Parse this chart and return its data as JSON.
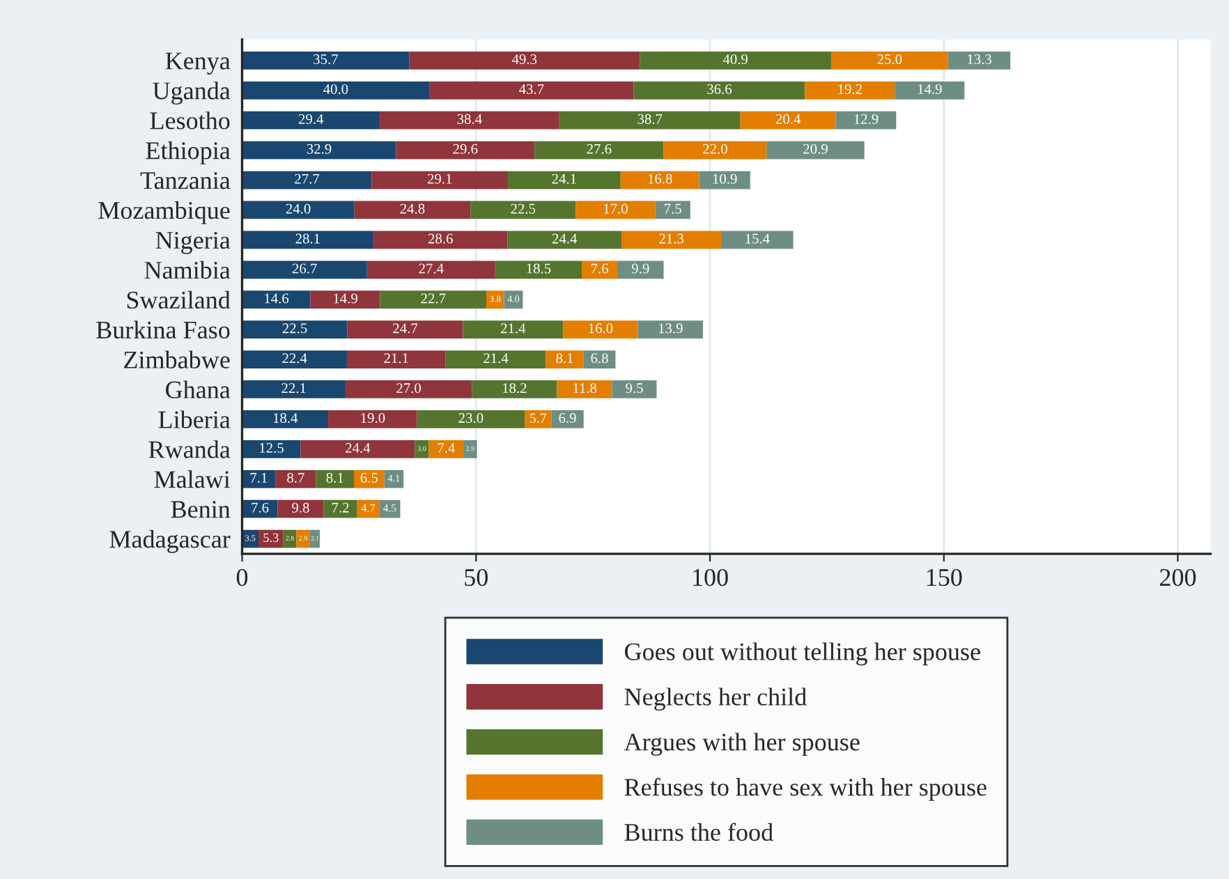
{
  "chart_data": {
    "type": "bar",
    "orientation": "horizontal",
    "stacked": true,
    "grid": "x",
    "legend": "bottom",
    "categories": [
      "Kenya",
      "Uganda",
      "Lesotho",
      "Ethiopia",
      "Tanzania",
      "Mozambique",
      "Nigeria",
      "Namibia",
      "Swaziland",
      "Burkina Faso",
      "Zimbabwe",
      "Ghana",
      "Liberia",
      "Rwanda",
      "Malawi",
      "Benin",
      "Madagascar"
    ],
    "xlim": [
      0,
      207
    ],
    "xticks": [
      0,
      50,
      100,
      150,
      200
    ],
    "series": [
      {
        "name": "Goes out without telling her spouse",
        "color": "#1a476f",
        "values": [
          35.7,
          40.0,
          29.4,
          32.9,
          27.7,
          24.0,
          28.1,
          26.7,
          14.6,
          22.5,
          22.4,
          22.1,
          18.4,
          12.5,
          7.1,
          7.6,
          3.5
        ],
        "value_labels": [
          "35.7",
          "40.0",
          "29.4",
          "32.9",
          "27.7",
          "24.0",
          "28.1",
          "26.7",
          "14.6",
          "22.5",
          "22.4",
          "22.1",
          "18.4",
          "12.5",
          "7.1",
          "7.6",
          "3.5"
        ]
      },
      {
        "name": "Neglects her child",
        "color": "#90353b",
        "values": [
          49.3,
          43.7,
          38.4,
          29.6,
          29.1,
          24.8,
          28.6,
          27.4,
          14.9,
          24.7,
          21.1,
          27.0,
          19.0,
          24.4,
          8.7,
          9.8,
          5.3
        ],
        "value_labels": [
          "49.3",
          "43.7",
          "38.4",
          "29.6",
          "29.1",
          "24.8",
          "28.6",
          "27.4",
          "14.9",
          "24.7",
          "21.1",
          "27.0",
          "19.0",
          "24.4",
          "8.7",
          "9.8",
          "5.3"
        ]
      },
      {
        "name": "Argues with her spouse",
        "color": "#55752f",
        "values": [
          40.9,
          36.6,
          38.7,
          27.6,
          24.1,
          22.5,
          24.4,
          18.5,
          22.7,
          21.4,
          21.4,
          18.2,
          23.0,
          3.0,
          8.1,
          7.2,
          2.8
        ],
        "value_labels": [
          "40.9",
          "36.6",
          "38.7",
          "27.6",
          "24.1",
          "22.5",
          "24.4",
          "18.5",
          "22.7",
          "21.4",
          "21.4",
          "18.2",
          "23.0",
          "3.0",
          "8.1",
          "7.2",
          "2.8"
        ]
      },
      {
        "name": "Refuses to have sex with her spouse",
        "color": "#e37e00",
        "values": [
          25.0,
          19.2,
          20.4,
          22.0,
          16.8,
          17.0,
          21.3,
          7.6,
          3.8,
          16.0,
          8.1,
          11.8,
          5.7,
          7.4,
          6.5,
          4.7,
          2.9
        ],
        "value_labels": [
          "25.0",
          "19.2",
          "20.4",
          "22.0",
          "16.8",
          "17.0",
          "21.3",
          "7.6",
          "3.8",
          "16.0",
          "8.1",
          "11.8",
          "5.7",
          "7.4",
          "6.5",
          "4.7",
          "2.9"
        ]
      },
      {
        "name": "Burns the food",
        "color": "#6e8e84",
        "values": [
          13.3,
          14.9,
          12.9,
          20.9,
          10.9,
          7.5,
          15.4,
          9.9,
          4.0,
          13.9,
          6.8,
          9.5,
          6.9,
          2.9,
          4.1,
          4.5,
          2.1
        ],
        "value_labels": [
          "13.3",
          "14.9",
          "12.9",
          "20.9",
          "10.9",
          "7.5",
          "15.4",
          "9.9",
          "4.0",
          "13.9",
          "6.8",
          "9.5",
          "6.9",
          "2.9",
          "4.1",
          "4.5",
          "2.1"
        ]
      }
    ]
  }
}
